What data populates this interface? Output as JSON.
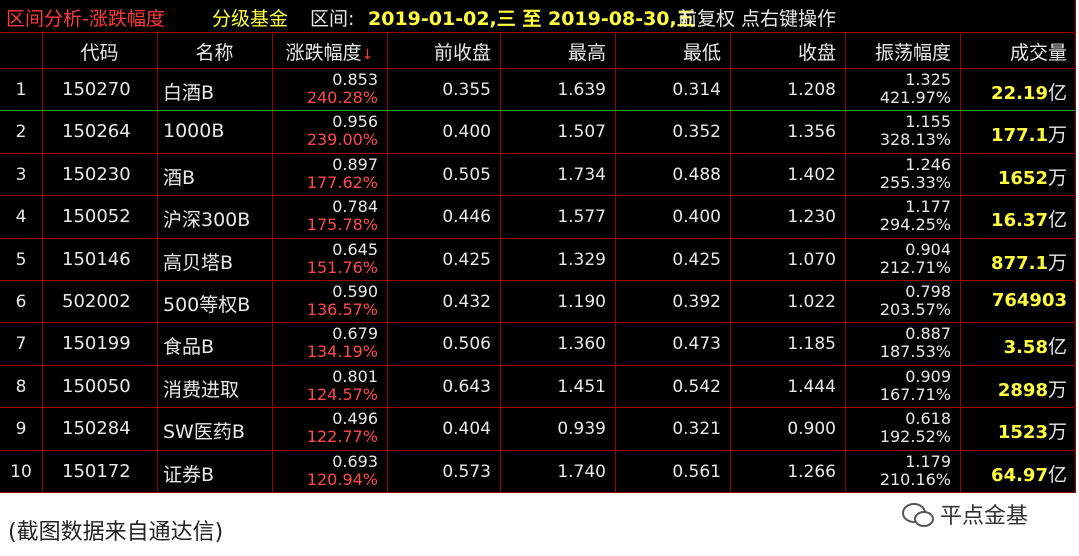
{
  "title_bar": [
    {
      "text": "区间分析-涨跌幅度",
      "color": "#ff3a3a"
    },
    {
      "text": "分级基金",
      "color": "#ffff40"
    },
    {
      "text": "区间:",
      "color": "#e8e8e8"
    },
    {
      "text": "2019-01-02,三 至 2019-08-30,五",
      "color": "#ffff40"
    },
    {
      "text": "前复权 点右键操作",
      "color": "#e8e8e8"
    }
  ],
  "table": {
    "columns": [
      "代码",
      "名称",
      "涨跌幅度",
      "前收盘",
      "最高",
      "最低",
      "收盘",
      "振荡幅度",
      "成交量"
    ],
    "sort_indicator": "↓",
    "rows": [
      {
        "no": "1",
        "code": "150270",
        "name": "白酒B",
        "change": "0.853",
        "change_pct": "240.28%",
        "prev_close": "0.355",
        "high": "1.639",
        "low": "0.314",
        "close": "1.208",
        "amplitude": "1.325",
        "amplitude_pct": "421.97%",
        "volume": "22.19",
        "volume_unit": "亿"
      },
      {
        "no": "2",
        "code": "150264",
        "name": "1000B",
        "change": "0.956",
        "change_pct": "239.00%",
        "prev_close": "0.400",
        "high": "1.507",
        "low": "0.352",
        "close": "1.356",
        "amplitude": "1.155",
        "amplitude_pct": "328.13%",
        "volume": "177.1",
        "volume_unit": "万"
      },
      {
        "no": "3",
        "code": "150230",
        "name": "酒B",
        "change": "0.897",
        "change_pct": "177.62%",
        "prev_close": "0.505",
        "high": "1.734",
        "low": "0.488",
        "close": "1.402",
        "amplitude": "1.246",
        "amplitude_pct": "255.33%",
        "volume": "1652",
        "volume_unit": "万"
      },
      {
        "no": "4",
        "code": "150052",
        "name": "沪深300B",
        "change": "0.784",
        "change_pct": "175.78%",
        "prev_close": "0.446",
        "high": "1.577",
        "low": "0.400",
        "close": "1.230",
        "amplitude": "1.177",
        "amplitude_pct": "294.25%",
        "volume": "16.37",
        "volume_unit": "亿"
      },
      {
        "no": "5",
        "code": "150146",
        "name": "高贝塔B",
        "change": "0.645",
        "change_pct": "151.76%",
        "prev_close": "0.425",
        "high": "1.329",
        "low": "0.425",
        "close": "1.070",
        "amplitude": "0.904",
        "amplitude_pct": "212.71%",
        "volume": "877.1",
        "volume_unit": "万"
      },
      {
        "no": "6",
        "code": "502002",
        "name": "500等权B",
        "change": "0.590",
        "change_pct": "136.57%",
        "prev_close": "0.432",
        "high": "1.190",
        "low": "0.392",
        "close": "1.022",
        "amplitude": "0.798",
        "amplitude_pct": "203.57%",
        "volume": "764903"
      },
      {
        "no": "7",
        "code": "150199",
        "name": "食品B",
        "change": "0.679",
        "change_pct": "134.19%",
        "prev_close": "0.506",
        "high": "1.360",
        "low": "0.473",
        "close": "1.185",
        "amplitude": "0.887",
        "amplitude_pct": "187.53%",
        "volume": "3.58",
        "volume_unit": "亿"
      },
      {
        "no": "8",
        "code": "150050",
        "name": "消费进取",
        "change": "0.801",
        "change_pct": "124.57%",
        "prev_close": "0.643",
        "high": "1.451",
        "low": "0.542",
        "close": "1.444",
        "amplitude": "0.909",
        "amplitude_pct": "167.71%",
        "volume": "2898",
        "volume_unit": "万"
      },
      {
        "no": "9",
        "code": "150284",
        "name": "SW医药B",
        "change": "0.496",
        "change_pct": "122.77%",
        "prev_close": "0.404",
        "high": "0.939",
        "low": "0.321",
        "close": "0.900",
        "amplitude": "0.618",
        "amplitude_pct": "192.52%",
        "volume": "1523",
        "volume_unit": "万"
      },
      {
        "no": "10",
        "code": "150172",
        "name": "证券B",
        "change": "0.693",
        "change_pct": "120.94%",
        "prev_close": "0.573",
        "high": "1.740",
        "low": "0.561",
        "close": "1.266",
        "amplitude": "1.179",
        "amplitude_pct": "210.16%",
        "volume": "64.97",
        "volume_unit": "亿"
      }
    ]
  },
  "caption": "(截图数据来自通达信)",
  "watermark": "平点金基"
}
